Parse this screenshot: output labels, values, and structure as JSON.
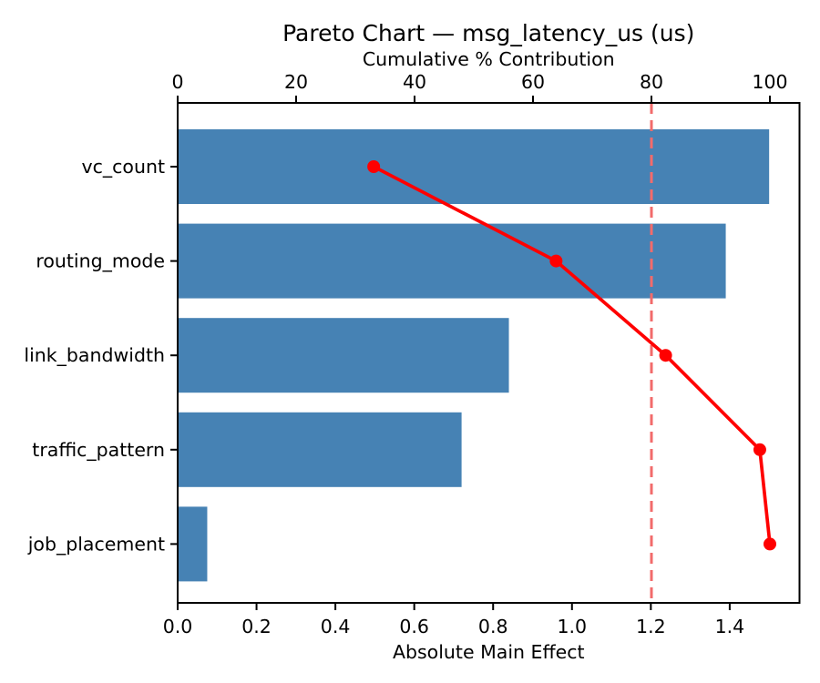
{
  "chart_data": {
    "type": "bar",
    "subtype": "pareto",
    "orientation": "horizontal",
    "title": "Pareto Chart — msg_latency_us (us)",
    "categories": [
      "vc_count",
      "routing_mode",
      "link_bandwidth",
      "traffic_pattern",
      "job_placement"
    ],
    "bottom_axis": {
      "label": "Absolute Main Effect",
      "tick_labels": [
        "0.0",
        "0.2",
        "0.4",
        "0.6",
        "0.8",
        "1.0",
        "1.2",
        "1.4"
      ],
      "tick_values": [
        0.0,
        0.2,
        0.4,
        0.6,
        0.8,
        1.0,
        1.2,
        1.4
      ],
      "range": [
        0,
        1.577
      ]
    },
    "top_axis": {
      "label": "Cumulative % Contribution",
      "tick_labels": [
        "0",
        "20",
        "40",
        "60",
        "80",
        "100"
      ],
      "tick_values": [
        0,
        20,
        40,
        60,
        80,
        100
      ],
      "range": [
        0,
        105
      ]
    },
    "series": [
      {
        "name": "Absolute Main Effect",
        "type": "bar",
        "axis": "bottom",
        "values": [
          1.5,
          1.39,
          0.84,
          0.72,
          0.075
        ],
        "color": "#4682B4"
      },
      {
        "name": "Cumulative % Contribution",
        "type": "line",
        "axis": "top",
        "values": [
          33.1,
          63.9,
          82.4,
          98.3,
          100.0
        ],
        "color": "#FF0000",
        "marker": "circle"
      }
    ],
    "threshold_line": {
      "value": 80,
      "axis": "top",
      "style": "dashed",
      "color": "#F26B6B"
    },
    "grid": false,
    "legend": false,
    "background": "#FFFFFF",
    "spine_color": "#000000"
  }
}
